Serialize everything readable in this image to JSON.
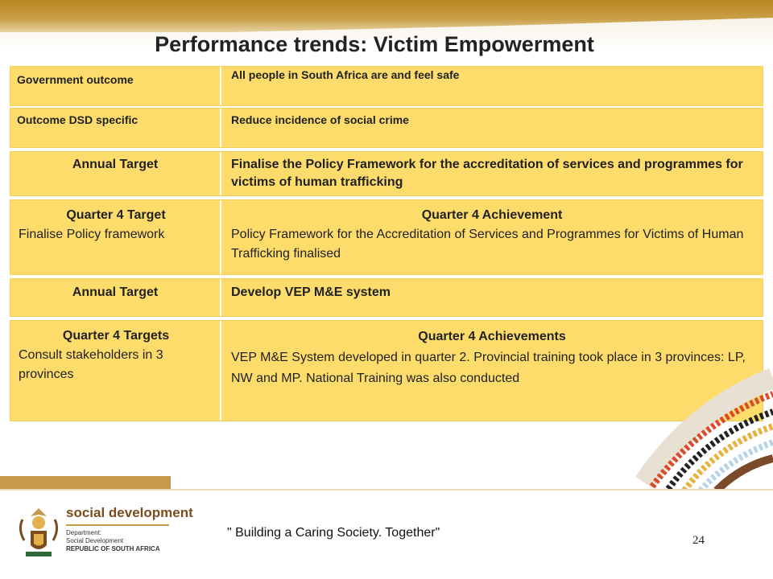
{
  "title": "Performance trends: Victim Empowerment",
  "rows": [
    {
      "left": "Government outcome",
      "right": "All people in South Africa are and feel safe"
    },
    {
      "left": "Outcome DSD specific",
      "right": "Reduce incidence of social crime"
    },
    {
      "left": "Annual Target",
      "right": "Finalise the Policy Framework for the accreditation of services and programmes for victims of human trafficking"
    },
    {
      "left_heading": "Quarter 4 Target",
      "left_text": "Finalise Policy framework",
      "right_heading": "Quarter 4 Achievement",
      "right_text": "Policy Framework for the Accreditation of Services and Programmes for Victims of Human Trafficking finalised"
    },
    {
      "left": "Annual Target",
      "right": "Develop VEP M&E system"
    },
    {
      "left_heading": "Quarter 4 Targets",
      "left_text": "Consult stakeholders in 3 provinces",
      "right_heading": "Quarter 4  Achievements",
      "right_text": "VEP M&E System developed in quarter 2. Provincial training took place in 3 provinces: LP, NW and MP. National Training was also conducted"
    }
  ],
  "footer": {
    "brand": "social development",
    "dept_line1": "Department:",
    "dept_line2": "Social Development",
    "dept_line3": "REPUBLIC OF SOUTH AFRICA",
    "slogan": "\" Building a Caring Society. Together\"",
    "page_number": "24"
  },
  "colors": {
    "table_fill": "#fddc6c",
    "band": "#b8871f",
    "brand_text": "#7a4c1e"
  }
}
